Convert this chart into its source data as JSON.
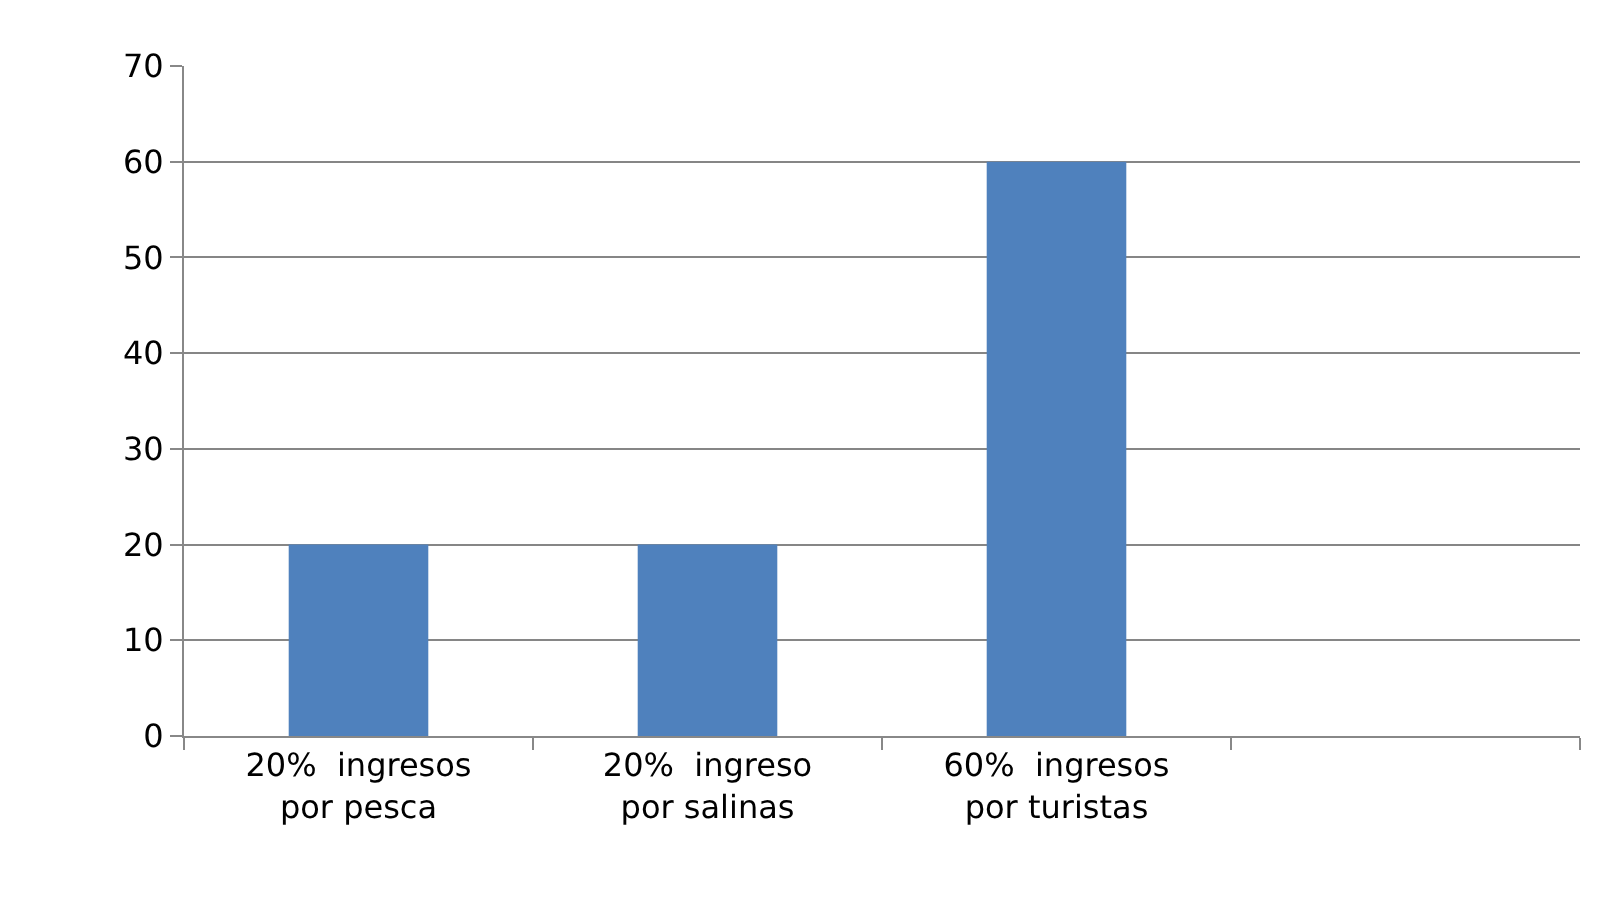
{
  "chart_data": {
    "type": "bar",
    "categories": [
      "20%  ingresos\npor pesca",
      "20%  ingreso\npor salinas",
      "60%  ingresos\npor turistas",
      null
    ],
    "values": [
      20,
      20,
      60,
      null
    ],
    "color": "#4f81bd",
    "ylim": [
      0,
      70
    ],
    "yticks": [
      0,
      10,
      20,
      30,
      40,
      50,
      60,
      70
    ],
    "grid": "y",
    "legend": false
  }
}
